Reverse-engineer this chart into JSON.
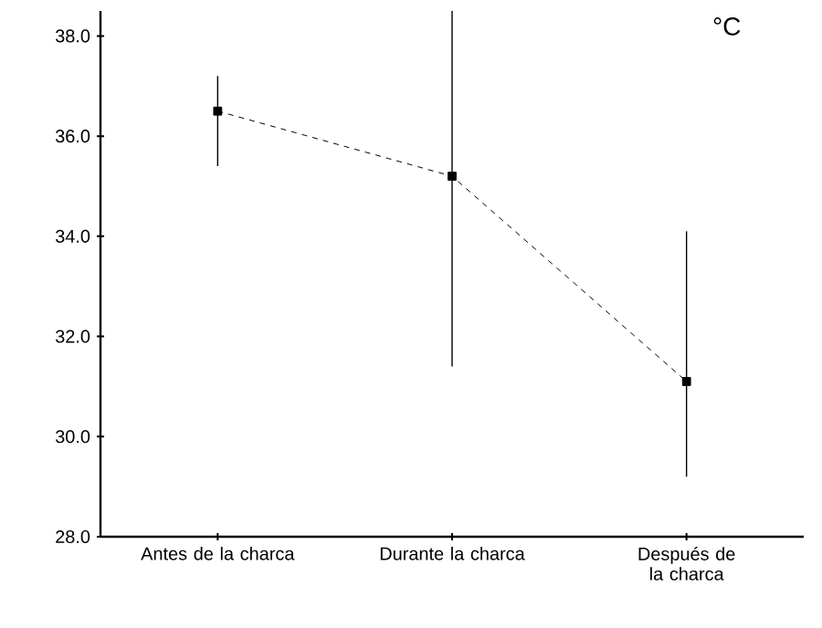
{
  "chart_data": {
    "type": "line",
    "categories": [
      "Antes de la charca",
      "Durante la charca",
      "Después de la charca"
    ],
    "values": [
      36.5,
      35.2,
      31.1
    ],
    "errors": [
      [
        35.4,
        37.2
      ],
      [
        31.4,
        38.5
      ],
      [
        29.2,
        34.1
      ]
    ],
    "color": "#000000",
    "marker": "square",
    "line_style": "dashed",
    "ylim": [
      28,
      38.5
    ],
    "yticks": [
      {
        "value": 28,
        "label": "28.0"
      },
      {
        "value": 30,
        "label": "30.0"
      },
      {
        "value": 32,
        "label": "32.0"
      },
      {
        "value": 34,
        "label": "34.0"
      },
      {
        "value": 36,
        "label": "36.0"
      },
      {
        "value": 38,
        "label": "38.0"
      }
    ],
    "annotations": [
      "°C"
    ],
    "grid": false
  }
}
